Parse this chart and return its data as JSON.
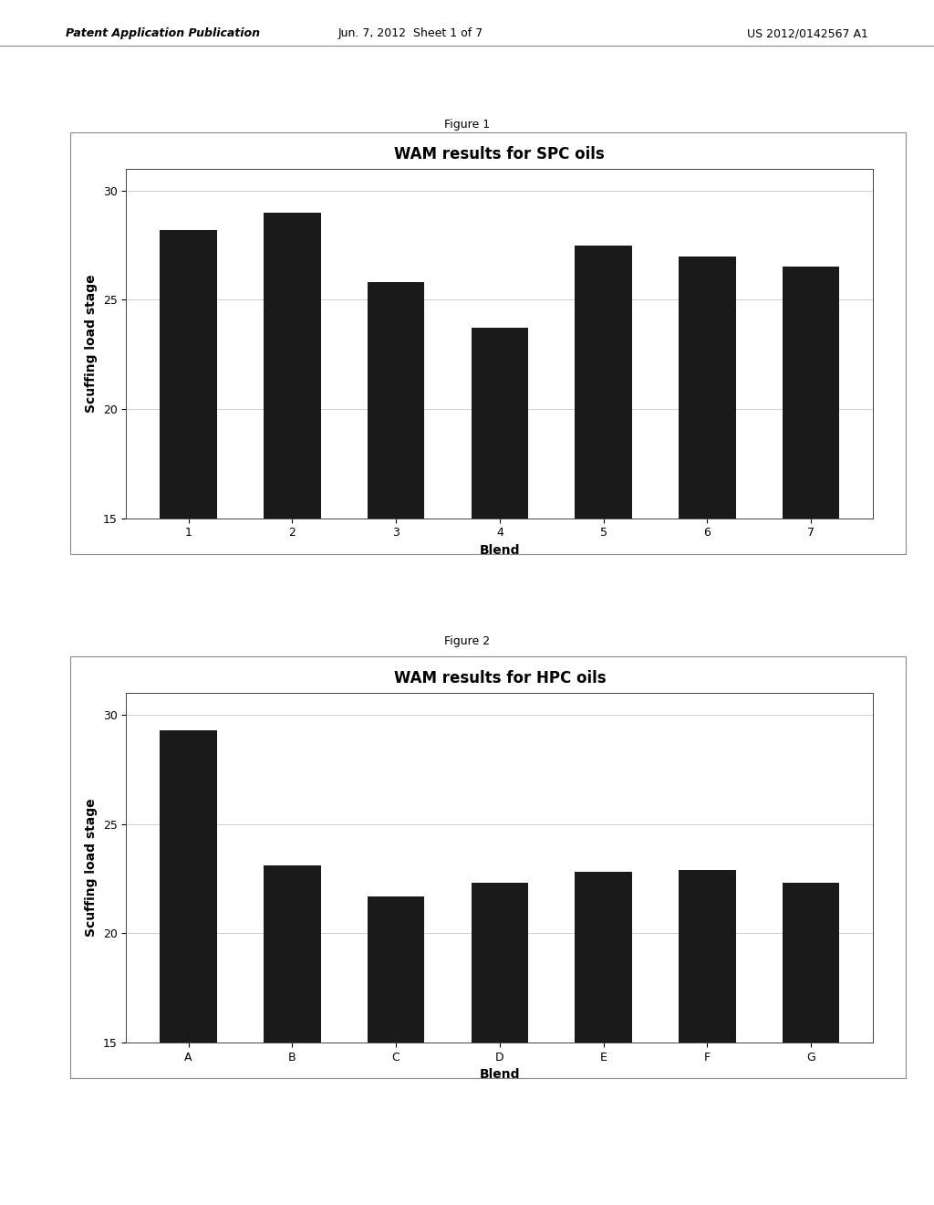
{
  "fig1": {
    "title": "WAM results for SPC oils",
    "xlabel": "Blend",
    "ylabel": "Scuffing load stage",
    "categories": [
      "1",
      "2",
      "3",
      "4",
      "5",
      "6",
      "7"
    ],
    "values": [
      28.2,
      29.0,
      25.8,
      23.7,
      27.5,
      27.0,
      26.5
    ],
    "ylim": [
      15,
      31
    ],
    "yticks": [
      15,
      20,
      25,
      30
    ],
    "bar_color": "#1a1a1a",
    "figure_label": "Figure 1"
  },
  "fig2": {
    "title": "WAM results for HPC oils",
    "xlabel": "Blend",
    "ylabel": "Scuffing load stage",
    "categories": [
      "A",
      "B",
      "C",
      "D",
      "E",
      "F",
      "G"
    ],
    "values": [
      29.3,
      23.1,
      21.7,
      22.3,
      22.8,
      22.9,
      22.3
    ],
    "ylim": [
      15,
      31
    ],
    "yticks": [
      15,
      20,
      25,
      30
    ],
    "bar_color": "#1a1a1a",
    "figure_label": "Figure 2"
  },
  "page_header_left": "Patent Application Publication",
  "page_header_mid": "Jun. 7, 2012  Sheet 1 of 7",
  "page_header_right": "US 2012/0142567 A1",
  "bg_color": "#ffffff",
  "title_fontsize": 12,
  "axis_label_fontsize": 10,
  "tick_fontsize": 9,
  "header_fontsize": 9,
  "figure_label_fontsize": 9
}
